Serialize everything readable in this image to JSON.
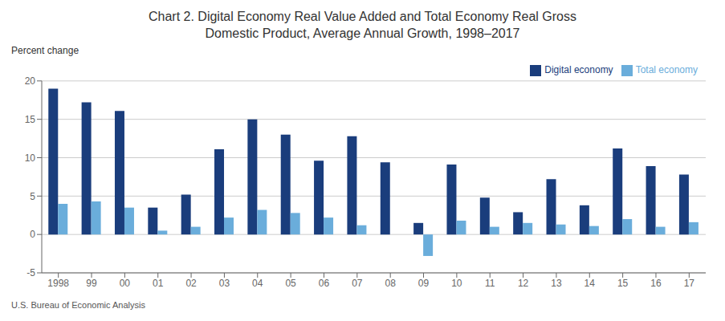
{
  "chart_data": {
    "type": "bar",
    "title": "Chart 2. Digital Economy Real Value Added and Total Economy Real Gross\nDomestic Product, Average Annual Growth, 1998–2017",
    "y_label": "Percent change",
    "annotations": [
      "U.S. Bureau of Economic Analysis"
    ],
    "categories": [
      "1998",
      "99",
      "00",
      "01",
      "02",
      "03",
      "04",
      "05",
      "06",
      "07",
      "08",
      "09",
      "10",
      "11",
      "12",
      "13",
      "14",
      "15",
      "16",
      "17"
    ],
    "series": [
      {
        "name": "Digital economy",
        "color": "#1a3d7c",
        "values": [
          19.0,
          17.2,
          16.1,
          3.5,
          5.2,
          11.1,
          15.0,
          13.0,
          9.6,
          12.8,
          9.4,
          1.5,
          9.1,
          4.8,
          2.9,
          7.2,
          3.8,
          11.2,
          8.9,
          7.8
        ]
      },
      {
        "name": "Total economy",
        "color": "#6aaddb",
        "values": [
          4.0,
          4.3,
          3.5,
          0.5,
          1.0,
          2.2,
          3.2,
          2.8,
          2.2,
          1.2,
          0.0,
          -2.8,
          1.8,
          1.0,
          1.5,
          1.3,
          1.1,
          2.0,
          1.0,
          1.6
        ]
      }
    ],
    "ylim": [
      -5,
      20
    ],
    "yticks": [
      -5,
      0,
      5,
      10,
      15,
      20
    ],
    "grid": true,
    "legend": "upper right"
  }
}
